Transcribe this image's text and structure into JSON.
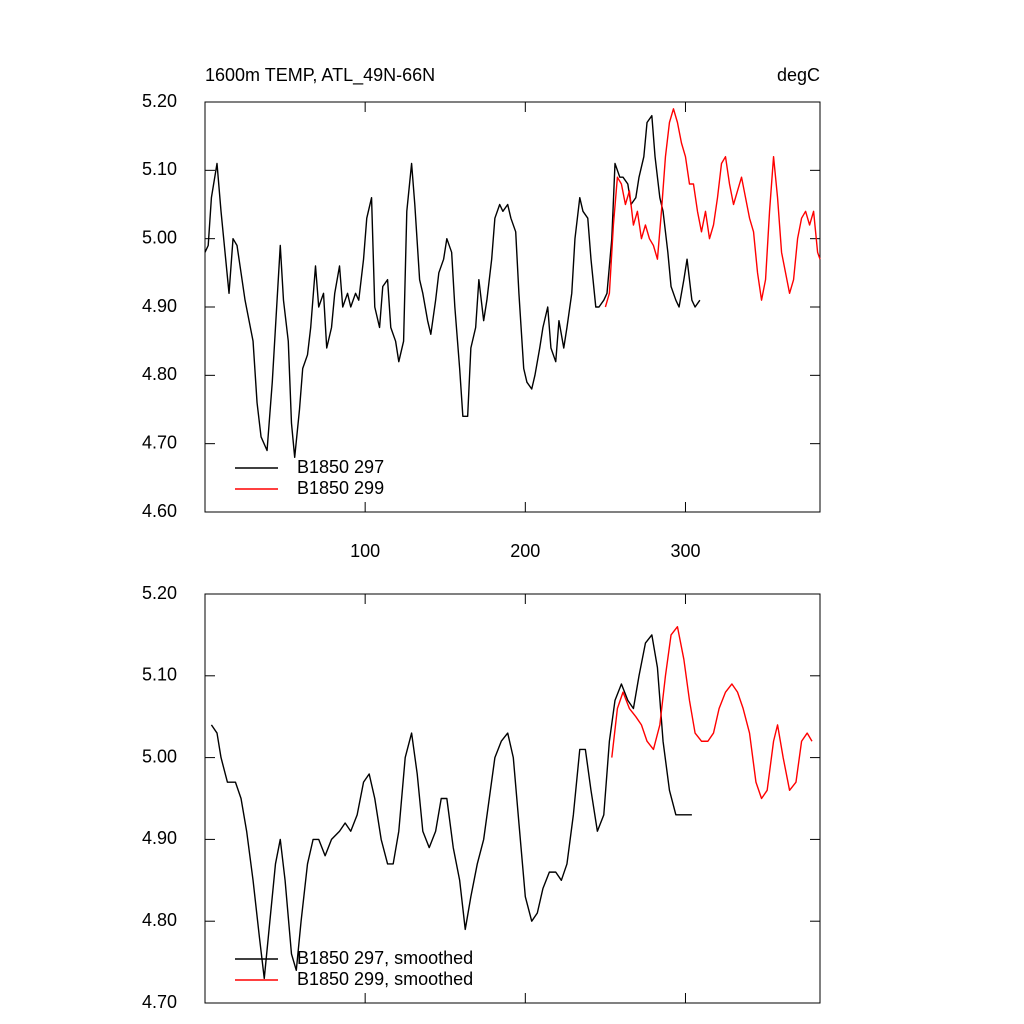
{
  "chart_data": [
    {
      "type": "line",
      "title": "1600m TEMP, ATL_49N-66N",
      "units": "degC",
      "xlim": [
        0,
        384
      ],
      "xticks": [
        100,
        200,
        300
      ],
      "xtick_labels": true,
      "ylim": [
        4.6,
        5.2
      ],
      "yticks": [
        {
          "value": 4.6,
          "label": "4.60"
        },
        {
          "value": 4.7,
          "label": "4.70"
        },
        {
          "value": 4.8,
          "label": "4.80"
        },
        {
          "value": 4.9,
          "label": "4.90"
        },
        {
          "value": 5.0,
          "label": "5.00"
        },
        {
          "value": 5.1,
          "label": "5.10"
        },
        {
          "value": 5.2,
          "label": "5.20"
        }
      ],
      "legend": "lower left",
      "series": [
        {
          "name": "B1850 297",
          "color": "#000000",
          "x": [
            0,
            2,
            4,
            7.5,
            10,
            12.5,
            15,
            17.5,
            20,
            22.5,
            25,
            27.5,
            30,
            32.5,
            35,
            38.75,
            42,
            44,
            47,
            49,
            52,
            54,
            56,
            59,
            61,
            64,
            66,
            69,
            71,
            74,
            76,
            79,
            81,
            84,
            86,
            89,
            91,
            94,
            96,
            99,
            101,
            104,
            106,
            109,
            111,
            114,
            116,
            119,
            121,
            124,
            126,
            129,
            131,
            134,
            136,
            139,
            141,
            144,
            146,
            149,
            151,
            154,
            156,
            159,
            161,
            164,
            166,
            169,
            171,
            174,
            176,
            179,
            181,
            184,
            186,
            189,
            191,
            194,
            196,
            199,
            201,
            204,
            206,
            209,
            211,
            214,
            216,
            219,
            221,
            224,
            226,
            229,
            231,
            234,
            236,
            239,
            241,
            244,
            246,
            249,
            251,
            254,
            256,
            259,
            261,
            264,
            266,
            269,
            271,
            274,
            276,
            279,
            281,
            284,
            286,
            289,
            291,
            294,
            296,
            299,
            301,
            304,
            306,
            309
          ],
          "values": [
            4.98,
            4.99,
            5.06,
            5.11,
            5.04,
            4.98,
            4.92,
            5.0,
            4.99,
            4.95,
            4.91,
            4.88,
            4.85,
            4.76,
            4.71,
            4.69,
            4.79,
            4.87,
            4.99,
            4.91,
            4.85,
            4.73,
            4.68,
            4.75,
            4.81,
            4.83,
            4.87,
            4.96,
            4.9,
            4.92,
            4.84,
            4.87,
            4.92,
            4.96,
            4.9,
            4.92,
            4.9,
            4.92,
            4.91,
            4.97,
            5.03,
            5.06,
            4.9,
            4.87,
            4.93,
            4.94,
            4.87,
            4.85,
            4.82,
            4.85,
            5.04,
            5.11,
            5.05,
            4.94,
            4.92,
            4.88,
            4.86,
            4.91,
            4.95,
            4.97,
            5.0,
            4.98,
            4.9,
            4.81,
            4.74,
            4.74,
            4.84,
            4.87,
            4.94,
            4.88,
            4.91,
            4.97,
            5.03,
            5.05,
            5.04,
            5.05,
            5.03,
            5.01,
            4.92,
            4.81,
            4.79,
            4.78,
            4.8,
            4.84,
            4.87,
            4.9,
            4.84,
            4.82,
            4.88,
            4.84,
            4.87,
            4.92,
            5.0,
            5.06,
            5.04,
            5.03,
            4.97,
            4.9,
            4.9,
            4.91,
            4.92,
            5.0,
            5.11,
            5.09,
            5.09,
            5.08,
            5.05,
            5.06,
            5.09,
            5.12,
            5.17,
            5.18,
            5.12,
            5.06,
            5.04,
            4.98,
            4.93,
            4.91,
            4.9,
            4.94,
            4.97,
            4.91,
            4.9,
            4.91
          ]
        },
        {
          "name": "B1850 299",
          "color": "#ff0000",
          "x": [
            250,
            252.5,
            255,
            257.5,
            260,
            262.5,
            265,
            267.5,
            270,
            272.5,
            275,
            277.5,
            280,
            282.5,
            285,
            287.5,
            290,
            292.5,
            295,
            297.5,
            300,
            302.5,
            305,
            307.5,
            310,
            312.5,
            315,
            317.5,
            320,
            322.5,
            325,
            327.5,
            330,
            332.5,
            335,
            337.5,
            340,
            342.5,
            345,
            347.5,
            350,
            352.5,
            355,
            357.5,
            360,
            362.5,
            365,
            367.5,
            370,
            372.5,
            375,
            377.5,
            380,
            382.5,
            384
          ],
          "values": [
            4.9,
            4.92,
            5.02,
            5.09,
            5.08,
            5.05,
            5.07,
            5.02,
            5.04,
            5.0,
            5.02,
            5.0,
            4.99,
            4.97,
            5.04,
            5.12,
            5.17,
            5.19,
            5.17,
            5.14,
            5.12,
            5.08,
            5.08,
            5.04,
            5.01,
            5.04,
            5.0,
            5.02,
            5.06,
            5.11,
            5.12,
            5.08,
            5.05,
            5.07,
            5.09,
            5.06,
            5.03,
            5.01,
            4.95,
            4.91,
            4.94,
            5.04,
            5.12,
            5.06,
            4.98,
            4.95,
            4.92,
            4.94,
            5.0,
            5.03,
            5.04,
            5.02,
            5.04,
            4.98,
            4.97
          ]
        }
      ]
    },
    {
      "type": "line",
      "xlim": [
        0,
        384
      ],
      "xticks": [
        100,
        200,
        300
      ],
      "xtick_labels": false,
      "ylim": [
        4.7,
        5.2
      ],
      "yticks": [
        {
          "value": 4.7,
          "label": "4.70"
        },
        {
          "value": 4.8,
          "label": "4.80"
        },
        {
          "value": 4.9,
          "label": "4.90"
        },
        {
          "value": 5.0,
          "label": "5.00"
        },
        {
          "value": 5.1,
          "label": "5.10"
        },
        {
          "value": 5.2,
          "label": "5.20"
        }
      ],
      "legend": "lower left",
      "series": [
        {
          "name": "B1850 297, smoothed",
          "color": "#000000",
          "x": [
            4,
            7.5,
            10,
            14,
            19,
            22.5,
            26,
            30,
            34,
            37,
            40,
            44,
            47,
            50,
            54,
            57,
            60,
            64,
            67.5,
            71,
            75,
            79,
            84,
            87.5,
            91,
            95,
            99,
            102.5,
            106,
            110,
            114,
            117.5,
            121,
            125,
            129,
            132.5,
            136,
            140,
            144,
            147.5,
            151,
            155,
            159,
            162.5,
            166,
            170,
            174,
            177.5,
            181,
            185,
            189,
            192.5,
            196,
            200,
            204,
            207.5,
            211,
            215,
            219,
            222.5,
            226,
            230,
            234,
            237.5,
            241,
            245,
            249,
            252.5,
            256,
            260,
            264,
            267.5,
            271,
            275,
            279,
            282.5,
            286,
            290,
            294,
            297.5,
            300,
            304
          ],
          "values": [
            5.04,
            5.03,
            5.0,
            4.97,
            4.97,
            4.95,
            4.91,
            4.85,
            4.78,
            4.73,
            4.79,
            4.87,
            4.9,
            4.85,
            4.76,
            4.74,
            4.8,
            4.87,
            4.9,
            4.9,
            4.88,
            4.9,
            4.91,
            4.92,
            4.91,
            4.93,
            4.97,
            4.98,
            4.95,
            4.9,
            4.87,
            4.87,
            4.91,
            5.0,
            5.03,
            4.98,
            4.91,
            4.89,
            4.91,
            4.95,
            4.95,
            4.89,
            4.85,
            4.79,
            4.83,
            4.87,
            4.9,
            4.95,
            5.0,
            5.02,
            5.03,
            5.0,
            4.92,
            4.83,
            4.8,
            4.81,
            4.84,
            4.86,
            4.86,
            4.85,
            4.87,
            4.93,
            5.01,
            5.01,
            4.96,
            4.91,
            4.93,
            5.02,
            5.07,
            5.09,
            5.07,
            5.06,
            5.1,
            5.14,
            5.15,
            5.11,
            5.02,
            4.96,
            4.93,
            4.93,
            4.93,
            4.93
          ]
        },
        {
          "name": "B1850 299, smoothed",
          "color": "#ff0000",
          "x": [
            254,
            257.5,
            261,
            265,
            269,
            272.5,
            276,
            280,
            284,
            287.5,
            291,
            295,
            299,
            302.5,
            306,
            310,
            314,
            317.5,
            321,
            325,
            329,
            332.5,
            336,
            340,
            344,
            347.5,
            351,
            355,
            357.5,
            361,
            365,
            369,
            372.5,
            376,
            379
          ],
          "values": [
            5.0,
            5.06,
            5.08,
            5.06,
            5.05,
            5.04,
            5.02,
            5.01,
            5.04,
            5.1,
            5.15,
            5.16,
            5.12,
            5.07,
            5.03,
            5.02,
            5.02,
            5.03,
            5.06,
            5.08,
            5.09,
            5.08,
            5.06,
            5.03,
            4.97,
            4.95,
            4.96,
            5.02,
            5.04,
            5.0,
            4.96,
            4.97,
            5.02,
            5.03,
            5.02
          ]
        }
      ]
    }
  ]
}
